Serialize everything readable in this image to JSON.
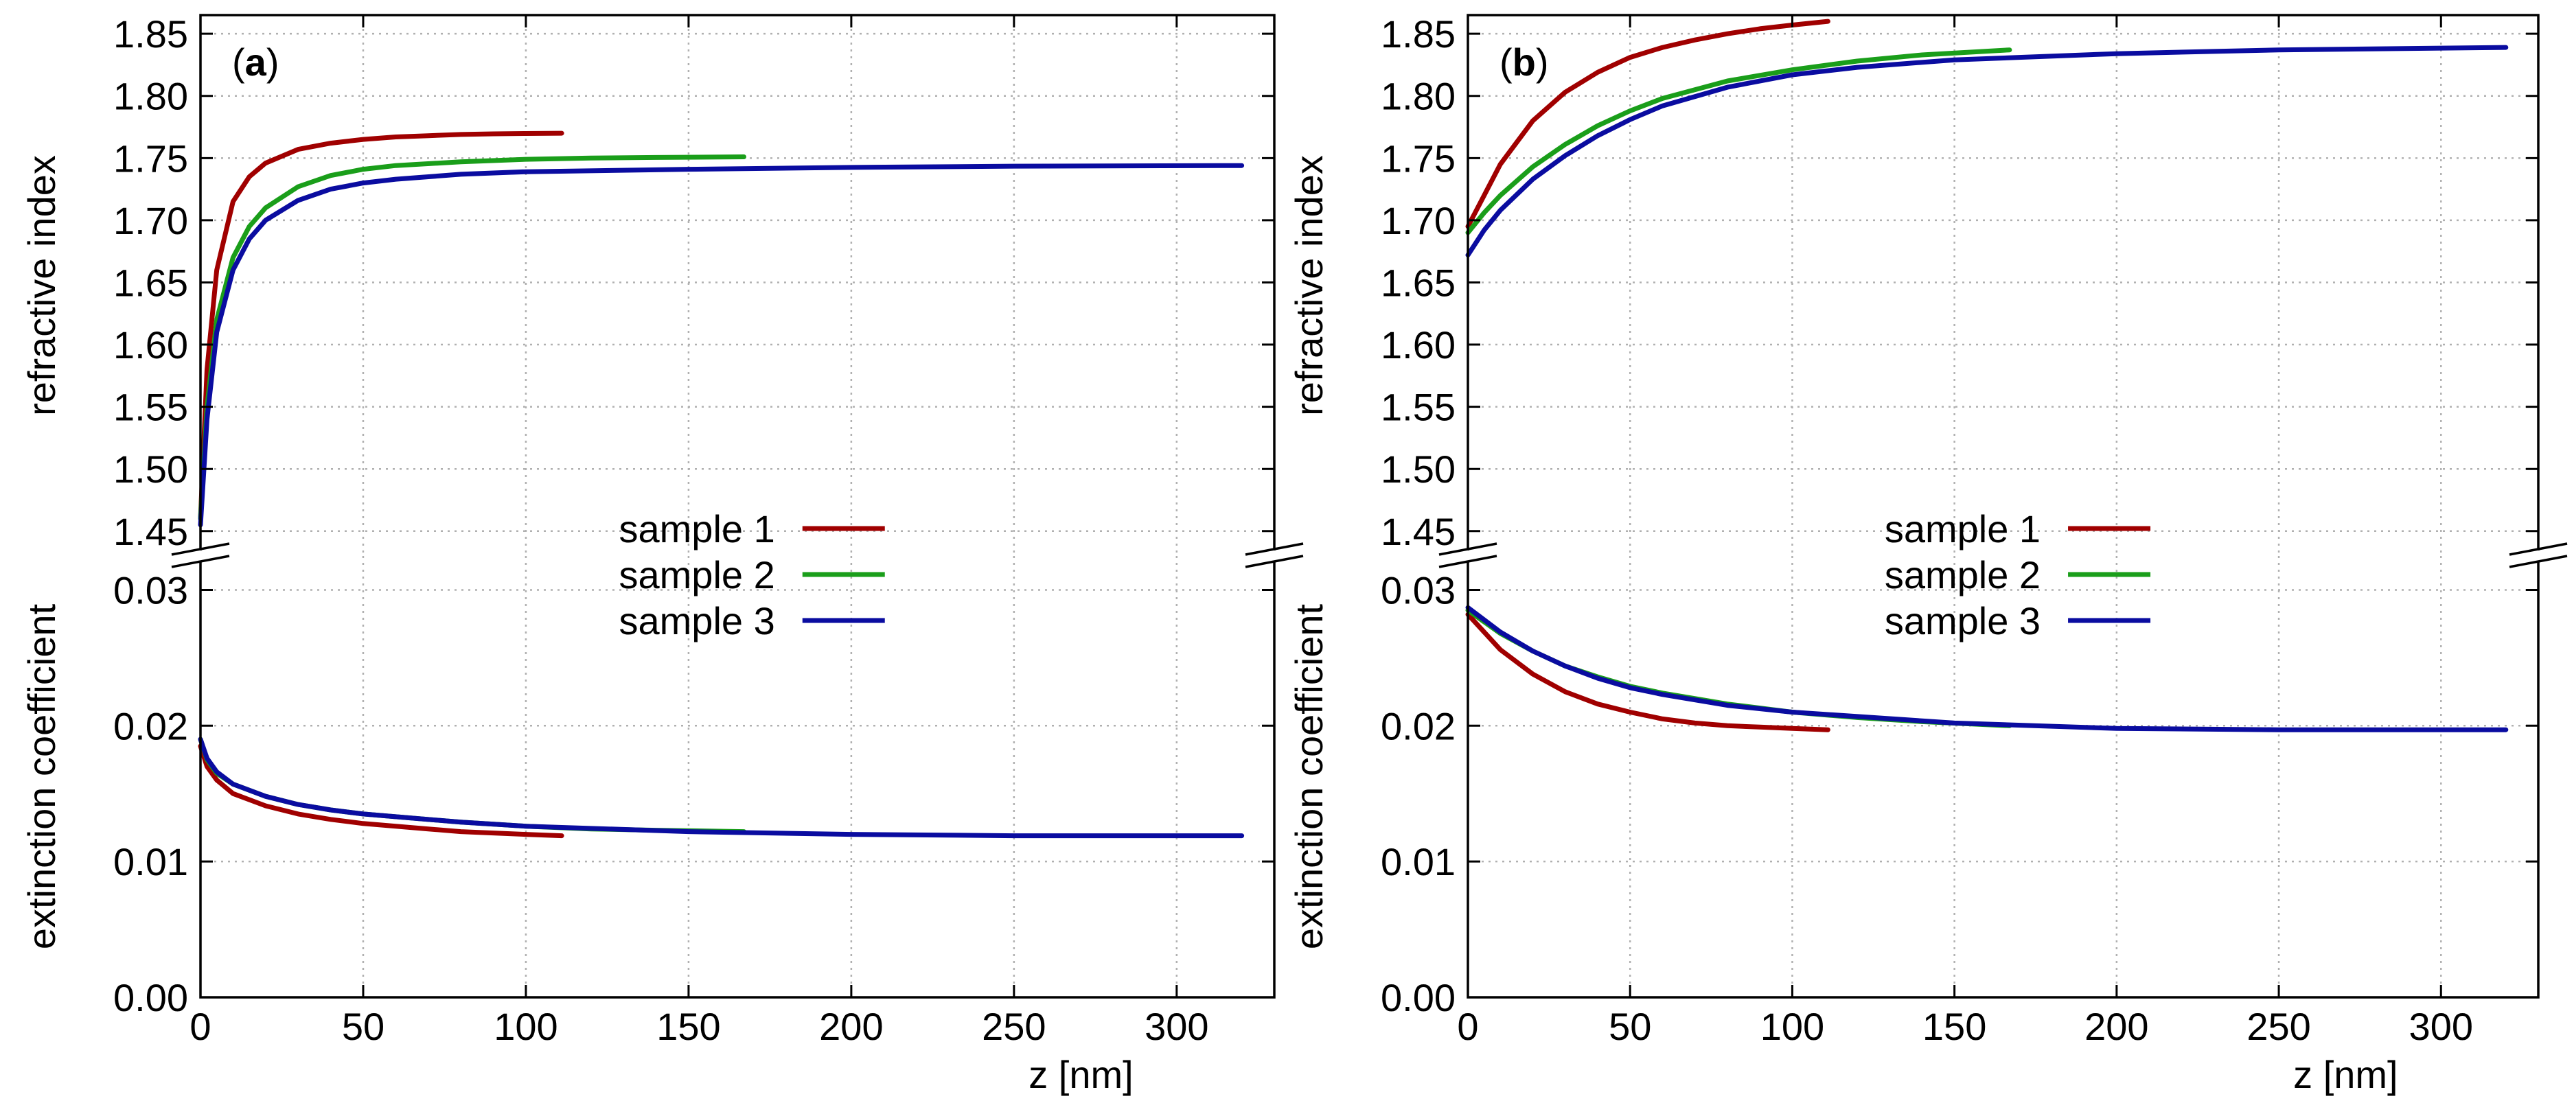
{
  "chart_data": [
    {
      "type": "line",
      "panel_label_open": "(",
      "panel_label_letter": "a",
      "panel_label_close": ")",
      "xlabel": "z [nm]",
      "x_ticks": [
        0,
        50,
        100,
        150,
        200,
        250,
        300
      ],
      "x_tick_labels": [
        "0",
        "50",
        "100",
        "150",
        "200",
        "250",
        "300"
      ],
      "xlim": [
        0,
        330
      ],
      "upper": {
        "ylabel": "refractive index",
        "ylim": [
          1.43,
          1.865
        ],
        "y_ticks": [
          1.45,
          1.5,
          1.55,
          1.6,
          1.65,
          1.7,
          1.75,
          1.8,
          1.85
        ],
        "y_tick_labels": [
          "1.45",
          "1.50",
          "1.55",
          "1.60",
          "1.65",
          "1.70",
          "1.75",
          "1.80",
          "1.85"
        ],
        "series": [
          {
            "name": "sample 1",
            "color": "#a00000",
            "x": [
              0,
              2,
              5,
              10,
              15,
              20,
              30,
              40,
              50,
              60,
              70,
              80,
              90,
              100,
              111
            ],
            "values": [
              1.46,
              1.58,
              1.66,
              1.715,
              1.735,
              1.746,
              1.757,
              1.762,
              1.765,
              1.767,
              1.768,
              1.769,
              1.7695,
              1.7698,
              1.77
            ]
          },
          {
            "name": "sample 2",
            "color": "#1a9e1a",
            "x": [
              0,
              2,
              5,
              10,
              15,
              20,
              30,
              40,
              50,
              60,
              80,
              100,
              120,
              140,
              167
            ],
            "values": [
              1.46,
              1.55,
              1.62,
              1.67,
              1.695,
              1.71,
              1.727,
              1.736,
              1.741,
              1.744,
              1.747,
              1.749,
              1.75,
              1.7505,
              1.751
            ]
          },
          {
            "name": "sample 3",
            "color": "#0a0ca0",
            "x": [
              0,
              2,
              5,
              10,
              15,
              20,
              30,
              40,
              50,
              60,
              80,
              100,
              150,
              200,
              250,
              320
            ],
            "values": [
              1.455,
              1.54,
              1.61,
              1.66,
              1.685,
              1.7,
              1.716,
              1.725,
              1.73,
              1.733,
              1.737,
              1.739,
              1.741,
              1.7425,
              1.7435,
              1.744
            ]
          }
        ]
      },
      "lower": {
        "ylabel": "extinction coefficient",
        "ylim": [
          0.0,
          0.0325
        ],
        "y_ticks": [
          0.0,
          0.01,
          0.02,
          0.03
        ],
        "y_tick_labels": [
          "0.00",
          "0.01",
          "0.02",
          "0.03"
        ],
        "series": [
          {
            "name": "sample 1",
            "color": "#a00000",
            "x": [
              0,
              2,
              5,
              10,
              20,
              30,
              40,
              50,
              60,
              70,
              80,
              90,
              100,
              111
            ],
            "values": [
              0.0185,
              0.017,
              0.016,
              0.015,
              0.0141,
              0.0135,
              0.0131,
              0.0128,
              0.0126,
              0.0124,
              0.0122,
              0.0121,
              0.012,
              0.0119
            ]
          },
          {
            "name": "sample 2",
            "color": "#1a9e1a",
            "x": [
              0,
              2,
              5,
              10,
              20,
              30,
              40,
              50,
              60,
              80,
              100,
              120,
              140,
              167
            ],
            "values": [
              0.019,
              0.0175,
              0.0165,
              0.0157,
              0.0148,
              0.0142,
              0.0138,
              0.0135,
              0.0133,
              0.0129,
              0.0126,
              0.0124,
              0.0123,
              0.0122
            ]
          },
          {
            "name": "sample 3",
            "color": "#0a0ca0",
            "x": [
              0,
              2,
              5,
              10,
              20,
              30,
              40,
              50,
              60,
              80,
              100,
              150,
              200,
              250,
              320
            ],
            "values": [
              0.019,
              0.0176,
              0.0166,
              0.0157,
              0.0148,
              0.0142,
              0.0138,
              0.0135,
              0.0133,
              0.0129,
              0.0126,
              0.0122,
              0.012,
              0.0119,
              0.0119
            ]
          }
        ]
      }
    },
    {
      "type": "line",
      "panel_label_open": "(",
      "panel_label_letter": "b",
      "panel_label_close": ")",
      "xlabel": "z [nm]",
      "x_ticks": [
        0,
        50,
        100,
        150,
        200,
        250,
        300
      ],
      "x_tick_labels": [
        "0",
        "50",
        "100",
        "150",
        "200",
        "250",
        "300"
      ],
      "xlim": [
        0,
        330
      ],
      "upper": {
        "ylabel": "refractive index",
        "ylim": [
          1.43,
          1.865
        ],
        "y_ticks": [
          1.45,
          1.5,
          1.55,
          1.6,
          1.65,
          1.7,
          1.75,
          1.8,
          1.85
        ],
        "y_tick_labels": [
          "1.45",
          "1.50",
          "1.55",
          "1.60",
          "1.65",
          "1.70",
          "1.75",
          "1.80",
          "1.85"
        ],
        "series": [
          {
            "name": "sample 1",
            "color": "#a00000",
            "x": [
              0,
              5,
              10,
              20,
              30,
              40,
              50,
              60,
              70,
              80,
              90,
              100,
              111
            ],
            "values": [
              1.695,
              1.72,
              1.745,
              1.78,
              1.803,
              1.819,
              1.831,
              1.839,
              1.845,
              1.85,
              1.854,
              1.857,
              1.86
            ]
          },
          {
            "name": "sample 2",
            "color": "#1a9e1a",
            "x": [
              0,
              5,
              10,
              20,
              30,
              40,
              50,
              60,
              80,
              100,
              120,
              140,
              167
            ],
            "values": [
              1.69,
              1.706,
              1.72,
              1.743,
              1.761,
              1.776,
              1.788,
              1.798,
              1.812,
              1.821,
              1.828,
              1.833,
              1.837
            ]
          },
          {
            "name": "sample 3",
            "color": "#0a0ca0",
            "x": [
              0,
              5,
              10,
              20,
              30,
              40,
              50,
              60,
              80,
              100,
              120,
              150,
              200,
              250,
              320
            ],
            "values": [
              1.672,
              1.692,
              1.708,
              1.733,
              1.752,
              1.768,
              1.781,
              1.792,
              1.807,
              1.817,
              1.823,
              1.829,
              1.834,
              1.837,
              1.839
            ]
          }
        ]
      },
      "lower": {
        "ylabel": "extinction coefficient",
        "ylim": [
          0.0,
          0.0325
        ],
        "y_ticks": [
          0.0,
          0.01,
          0.02,
          0.03
        ],
        "y_tick_labels": [
          "0.00",
          "0.01",
          "0.02",
          "0.03"
        ],
        "series": [
          {
            "name": "sample 1",
            "color": "#a00000",
            "x": [
              0,
              10,
              20,
              30,
              40,
              50,
              60,
              70,
              80,
              90,
              100,
              111
            ],
            "values": [
              0.0282,
              0.0256,
              0.0238,
              0.0225,
              0.0216,
              0.021,
              0.0205,
              0.0202,
              0.02,
              0.0199,
              0.0198,
              0.0197
            ]
          },
          {
            "name": "sample 2",
            "color": "#1a9e1a",
            "x": [
              0,
              10,
              20,
              30,
              40,
              50,
              60,
              80,
              100,
              120,
              140,
              167
            ],
            "values": [
              0.0285,
              0.0268,
              0.0255,
              0.0244,
              0.0236,
              0.0229,
              0.0224,
              0.0216,
              0.021,
              0.0206,
              0.0203,
              0.02
            ]
          },
          {
            "name": "sample 3",
            "color": "#0a0ca0",
            "x": [
              0,
              10,
              20,
              30,
              40,
              50,
              60,
              80,
              100,
              150,
              200,
              250,
              320
            ],
            "values": [
              0.0287,
              0.0269,
              0.0255,
              0.0244,
              0.0235,
              0.0228,
              0.0223,
              0.0215,
              0.021,
              0.0202,
              0.0198,
              0.0197,
              0.0197
            ]
          }
        ]
      }
    }
  ]
}
